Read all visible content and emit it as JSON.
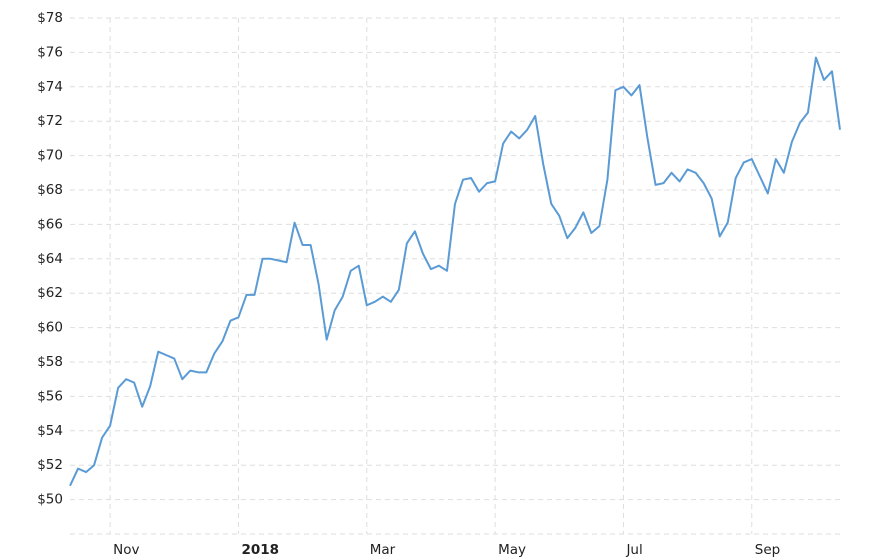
{
  "chart_data": {
    "type": "line",
    "categories": [
      null,
      null,
      null,
      null,
      null,
      "Nov",
      null,
      null,
      null,
      null,
      null,
      null,
      null,
      null,
      null,
      null,
      null,
      null,
      null,
      null,
      null,
      "2018",
      null,
      null,
      null,
      null,
      null,
      null,
      null,
      null,
      null,
      null,
      null,
      null,
      null,
      null,
      null,
      "Mar",
      null,
      null,
      null,
      null,
      null,
      null,
      null,
      null,
      null,
      null,
      null,
      null,
      null,
      null,
      null,
      "May",
      null,
      null,
      null,
      null,
      null,
      null,
      null,
      null,
      null,
      null,
      null,
      null,
      null,
      null,
      null,
      "Jul",
      null,
      null,
      null,
      null,
      null,
      null,
      null,
      null,
      null,
      null,
      null,
      null,
      null,
      null,
      null,
      "Sep",
      null,
      null,
      null,
      null,
      null,
      null,
      null,
      null,
      null,
      null,
      null
    ],
    "values": [
      50.8,
      51.8,
      51.6,
      52,
      53.6,
      54.3,
      56.5,
      57,
      56.8,
      55.4,
      56.6,
      58.6,
      58.4,
      58.2,
      57,
      57.5,
      57.4,
      57.4,
      58.5,
      59.2,
      60.4,
      60.6,
      61.9,
      61.9,
      64,
      64,
      63.9,
      63.8,
      66.1,
      64.8,
      64.8,
      62.5,
      59.3,
      61,
      61.8,
      63.3,
      63.6,
      61.3,
      61.5,
      61.8,
      61.5,
      62.2,
      64.9,
      65.6,
      64.3,
      63.4,
      63.6,
      63.3,
      67.2,
      68.6,
      68.7,
      67.9,
      68.4,
      68.5,
      70.7,
      71.4,
      71,
      71.5,
      72.3,
      69.5,
      67.2,
      66.5,
      65.2,
      65.8,
      66.7,
      65.5,
      65.9,
      68.6,
      73.8,
      74,
      73.5,
      74.1,
      71,
      68.3,
      68.4,
      69,
      68.5,
      69.2,
      69,
      68.4,
      67.5,
      65.3,
      66.1,
      68.7,
      69.6,
      69.8,
      68.8,
      67.8,
      69.8,
      69,
      70.8,
      71.9,
      72.5,
      75.7,
      74.4,
      74.9,
      71.5
    ],
    "color": "#5b9bd5",
    "ylim": [
      48,
      78
    ],
    "yticks": [
      {
        "value": 50,
        "label": "$50"
      },
      {
        "value": 52,
        "label": "$52"
      },
      {
        "value": 54,
        "label": "$54"
      },
      {
        "value": 56,
        "label": "$56"
      },
      {
        "value": 58,
        "label": "$58"
      },
      {
        "value": 60,
        "label": "$60"
      },
      {
        "value": 62,
        "label": "$62"
      },
      {
        "value": 64,
        "label": "$64"
      },
      {
        "value": 66,
        "label": "$66"
      },
      {
        "value": 68,
        "label": "$68"
      },
      {
        "value": 70,
        "label": "$70"
      },
      {
        "value": 72,
        "label": "$72"
      },
      {
        "value": 74,
        "label": "$74"
      },
      {
        "value": 76,
        "label": "$76"
      },
      {
        "value": 78,
        "label": "$78"
      }
    ],
    "grid": true
  }
}
